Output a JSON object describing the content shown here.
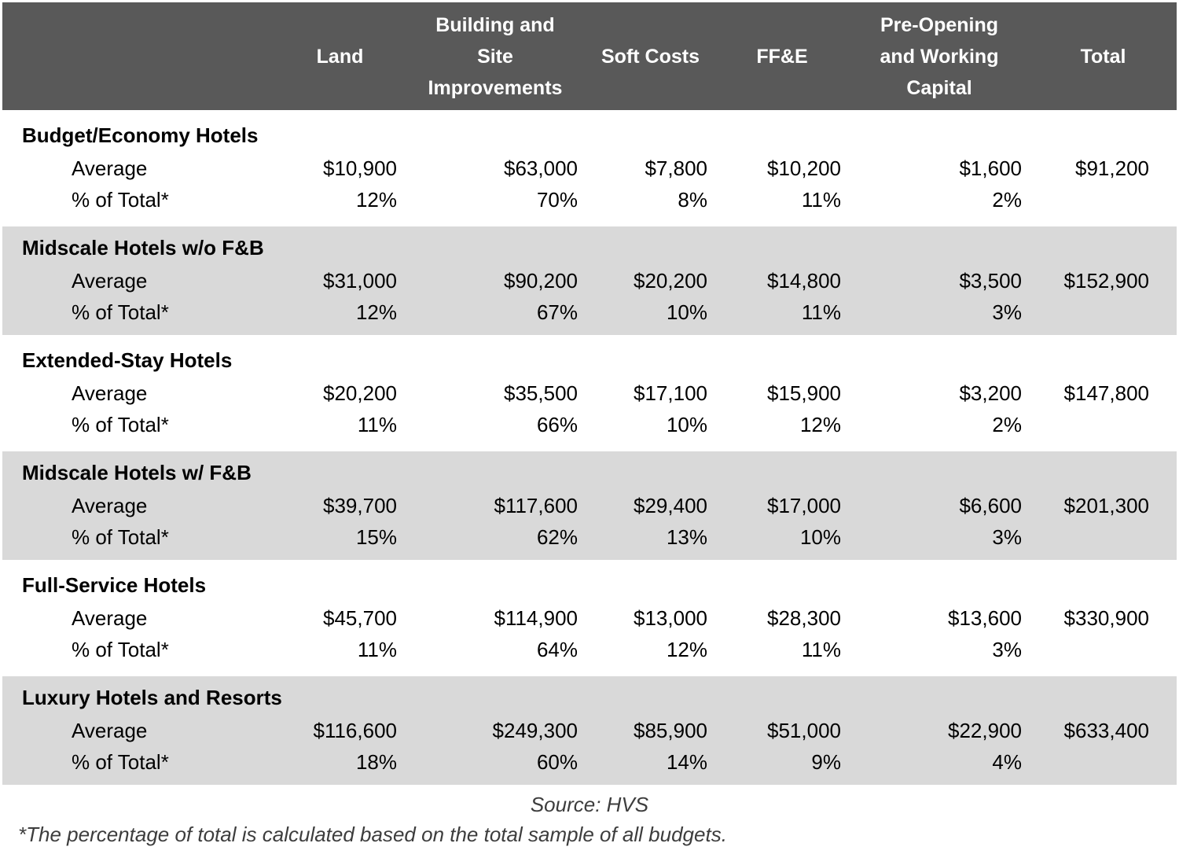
{
  "header": {
    "columns": [
      "",
      "Land",
      "Building and\nSite\nImprovements",
      "Soft Costs",
      "FF&E",
      "Pre-Opening\nand Working\nCapital",
      "Total"
    ]
  },
  "sections": [
    {
      "name": "Budget/Economy Hotels",
      "avg_label": "Average",
      "pct_label": "% of Total*",
      "average": [
        "$10,900",
        "$63,000",
        "$7,800",
        "$10,200",
        "$1,600",
        "$91,200"
      ],
      "pct": [
        "12%",
        "70%",
        "8%",
        "11%",
        "2%",
        ""
      ]
    },
    {
      "name": "Midscale Hotels w/o F&B",
      "avg_label": "Average",
      "pct_label": "% of Total*",
      "average": [
        "$31,000",
        "$90,200",
        "$20,200",
        "$14,800",
        "$3,500",
        "$152,900"
      ],
      "pct": [
        "12%",
        "67%",
        "10%",
        "11%",
        "3%",
        ""
      ]
    },
    {
      "name": "Extended-Stay Hotels",
      "avg_label": "Average",
      "pct_label": "% of Total*",
      "average": [
        "$20,200",
        "$35,500",
        "$17,100",
        "$15,900",
        "$3,200",
        "$147,800"
      ],
      "pct": [
        "11%",
        "66%",
        "10%",
        "12%",
        "2%",
        ""
      ]
    },
    {
      "name": "Midscale Hotels w/ F&B",
      "avg_label": "Average",
      "pct_label": "% of Total*",
      "average": [
        "$39,700",
        "$117,600",
        "$29,400",
        "$17,000",
        "$6,600",
        "$201,300"
      ],
      "pct": [
        "15%",
        "62%",
        "13%",
        "10%",
        "3%",
        ""
      ]
    },
    {
      "name": "Full-Service Hotels",
      "avg_label": "Average",
      "pct_label": "% of Total*",
      "average": [
        "$45,700",
        "$114,900",
        "$13,000",
        "$28,300",
        "$13,600",
        "$330,900"
      ],
      "pct": [
        "11%",
        "64%",
        "12%",
        "11%",
        "3%",
        ""
      ]
    },
    {
      "name": "Luxury Hotels and Resorts",
      "avg_label": "Average",
      "pct_label": "% of Total*",
      "average": [
        "$116,600",
        "$249,300",
        "$85,900",
        "$51,000",
        "$22,900",
        "$633,400"
      ],
      "pct": [
        "18%",
        "60%",
        "14%",
        "9%",
        "4%",
        ""
      ]
    }
  ],
  "footer": {
    "source": "Source: HVS",
    "footnote": "*The percentage of total is calculated based on the total sample of all budgets."
  },
  "colors": {
    "header_bg": "#595959",
    "header_text": "#ffffff",
    "band_bg": "#d9d9d9",
    "body_text": "#000000",
    "footnote_text": "#3d3d3d"
  },
  "chart_data": {
    "type": "table",
    "columns": [
      "Land",
      "Building and Site Improvements",
      "Soft Costs",
      "FF&E",
      "Pre-Opening and Working Capital",
      "Total"
    ],
    "row_metrics": [
      "Average",
      "% of Total*"
    ],
    "rows": [
      {
        "category": "Budget/Economy Hotels",
        "average": [
          10900,
          63000,
          7800,
          10200,
          1600,
          91200
        ],
        "pct_of_total": [
          12,
          70,
          8,
          11,
          2,
          null
        ]
      },
      {
        "category": "Midscale Hotels w/o F&B",
        "average": [
          31000,
          90200,
          20200,
          14800,
          3500,
          152900
        ],
        "pct_of_total": [
          12,
          67,
          10,
          11,
          3,
          null
        ]
      },
      {
        "category": "Extended-Stay Hotels",
        "average": [
          20200,
          35500,
          17100,
          15900,
          3200,
          147800
        ],
        "pct_of_total": [
          11,
          66,
          10,
          12,
          2,
          null
        ]
      },
      {
        "category": "Midscale Hotels w/ F&B",
        "average": [
          39700,
          117600,
          29400,
          17000,
          6600,
          201300
        ],
        "pct_of_total": [
          15,
          62,
          13,
          10,
          3,
          null
        ]
      },
      {
        "category": "Full-Service Hotels",
        "average": [
          45700,
          114900,
          13000,
          28300,
          13600,
          330900
        ],
        "pct_of_total": [
          11,
          64,
          12,
          11,
          3,
          null
        ]
      },
      {
        "category": "Luxury Hotels and Resorts",
        "average": [
          116600,
          249300,
          85900,
          51000,
          22900,
          633400
        ],
        "pct_of_total": [
          18,
          60,
          14,
          9,
          4,
          null
        ]
      }
    ],
    "source": "Source: HVS",
    "footnote": "*The percentage of total is calculated based on the total sample of all budgets."
  }
}
